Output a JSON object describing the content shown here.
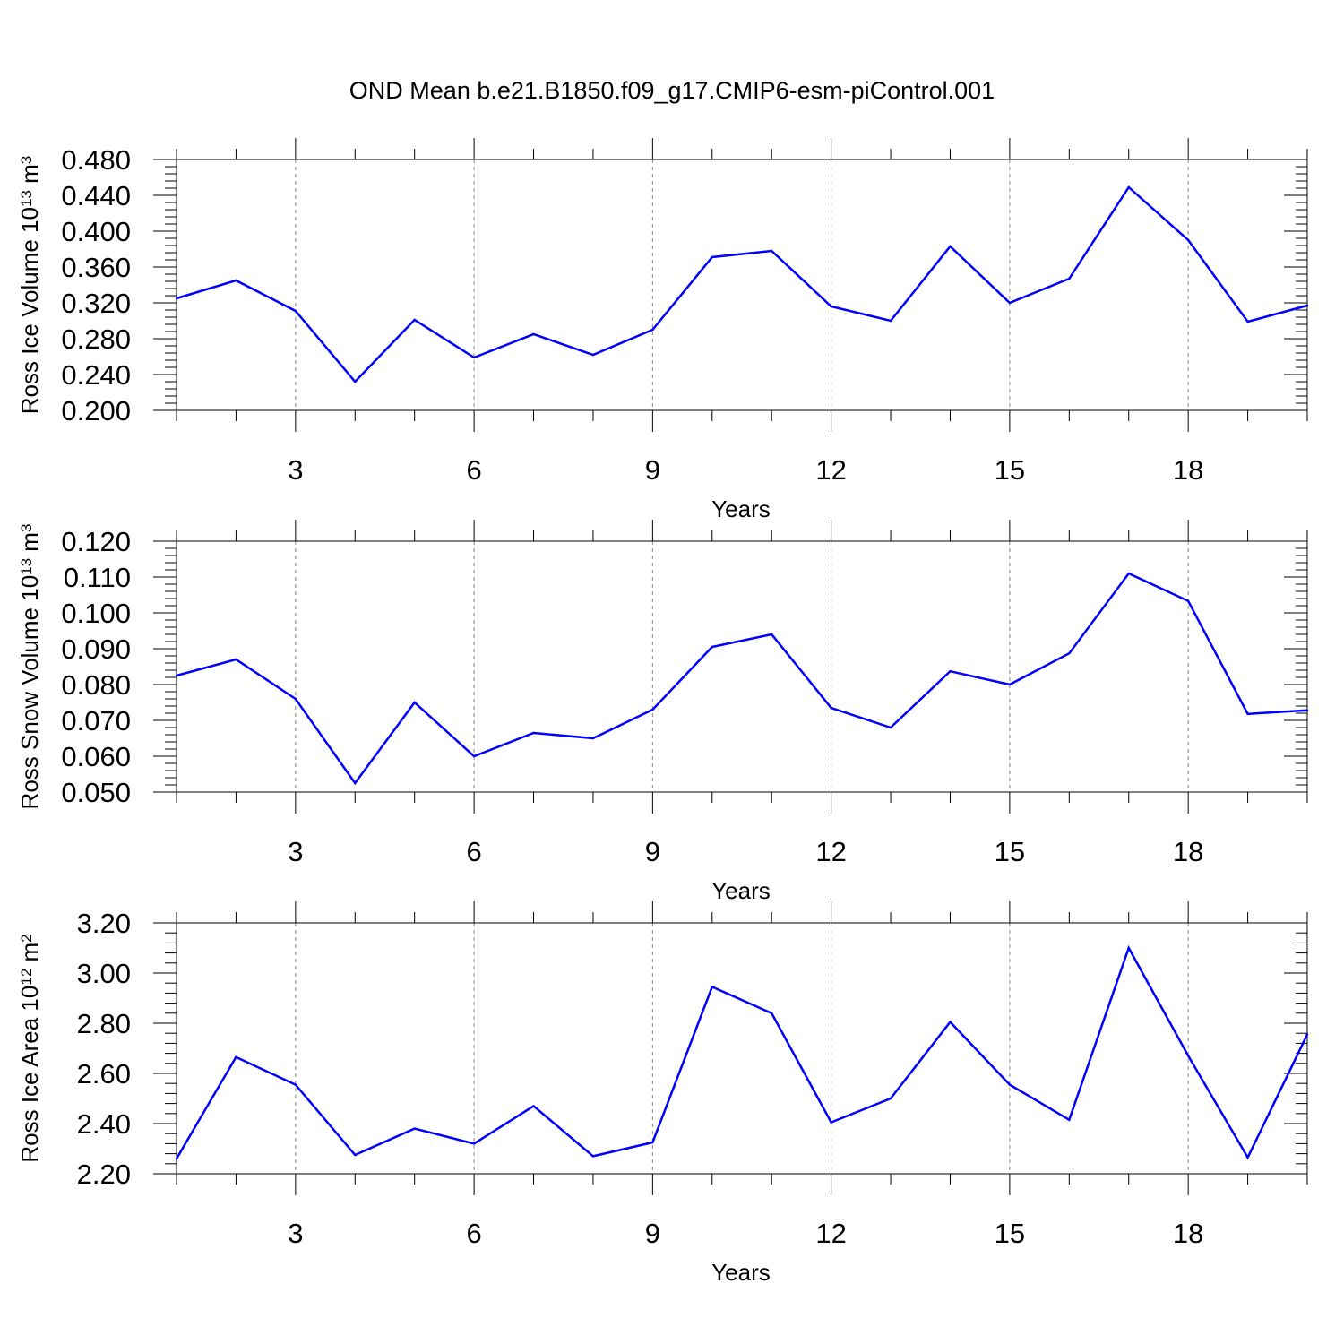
{
  "title": "OND Mean b.e21.B1850.f09_g17.CMIP6-esm-piControl.001",
  "line_color": "#0000ff",
  "chart_data": [
    {
      "type": "line",
      "xlabel": "Years",
      "ylabel": {
        "text": "Ross Ice Volume 10",
        "exp": "13",
        "unit": " m",
        "unit_exp": "3"
      },
      "xlim": [
        1,
        20
      ],
      "ylim": [
        0.2,
        0.48
      ],
      "xticks": [
        3,
        6,
        9,
        12,
        15,
        18
      ],
      "yticks": [
        "0.200",
        "0.240",
        "0.280",
        "0.320",
        "0.360",
        "0.400",
        "0.440",
        "0.480"
      ],
      "ytick_values": [
        0.2,
        0.24,
        0.28,
        0.32,
        0.36,
        0.4,
        0.44,
        0.48
      ],
      "grid": "x-dashed",
      "x": [
        1,
        2,
        3,
        4,
        5,
        6,
        7,
        8,
        9,
        10,
        11,
        12,
        13,
        14,
        15,
        16,
        17,
        18,
        19,
        20
      ],
      "values": [
        0.325,
        0.345,
        0.311,
        0.232,
        0.301,
        0.259,
        0.285,
        0.262,
        0.29,
        0.371,
        0.378,
        0.316,
        0.3,
        0.383,
        0.32,
        0.347,
        0.449,
        0.39,
        0.299,
        0.317
      ]
    },
    {
      "type": "line",
      "xlabel": "Years",
      "ylabel": {
        "text": "Ross Snow Volume 10",
        "exp": "13",
        "unit": " m",
        "unit_exp": "3"
      },
      "xlim": [
        1,
        20
      ],
      "ylim": [
        0.05,
        0.12
      ],
      "xticks": [
        3,
        6,
        9,
        12,
        15,
        18
      ],
      "yticks": [
        "0.050",
        "0.060",
        "0.070",
        "0.080",
        "0.090",
        "0.100",
        "0.110",
        "0.120"
      ],
      "ytick_values": [
        0.05,
        0.06,
        0.07,
        0.08,
        0.09,
        0.1,
        0.11,
        0.12
      ],
      "grid": "x-dashed",
      "x": [
        1,
        2,
        3,
        4,
        5,
        6,
        7,
        8,
        9,
        10,
        11,
        12,
        13,
        14,
        15,
        16,
        17,
        18,
        19,
        20
      ],
      "values": [
        0.0825,
        0.087,
        0.076,
        0.0525,
        0.075,
        0.06,
        0.0665,
        0.065,
        0.073,
        0.0905,
        0.094,
        0.0735,
        0.068,
        0.0837,
        0.08,
        0.0887,
        0.111,
        0.1033,
        0.0718,
        0.0728
      ]
    },
    {
      "type": "line",
      "xlabel": "Years",
      "ylabel": {
        "text": "Ross Ice Area 10",
        "exp": "12",
        "unit": " m",
        "unit_exp": "2"
      },
      "xlim": [
        1,
        20
      ],
      "ylim": [
        2.2,
        3.2
      ],
      "xticks": [
        3,
        6,
        9,
        12,
        15,
        18
      ],
      "yticks": [
        "2.20",
        "2.40",
        "2.60",
        "2.80",
        "3.00",
        "3.20"
      ],
      "ytick_values": [
        2.2,
        2.4,
        2.6,
        2.8,
        3.0,
        3.2
      ],
      "grid": "x-dashed",
      "x": [
        1,
        2,
        3,
        4,
        5,
        6,
        7,
        8,
        9,
        10,
        11,
        12,
        13,
        14,
        15,
        16,
        17,
        18,
        19,
        20
      ],
      "values": [
        2.26,
        2.665,
        2.555,
        2.275,
        2.38,
        2.32,
        2.47,
        2.27,
        2.325,
        2.945,
        2.84,
        2.405,
        2.5,
        2.805,
        2.555,
        2.415,
        3.1,
        2.67,
        2.265,
        2.755
      ]
    }
  ]
}
